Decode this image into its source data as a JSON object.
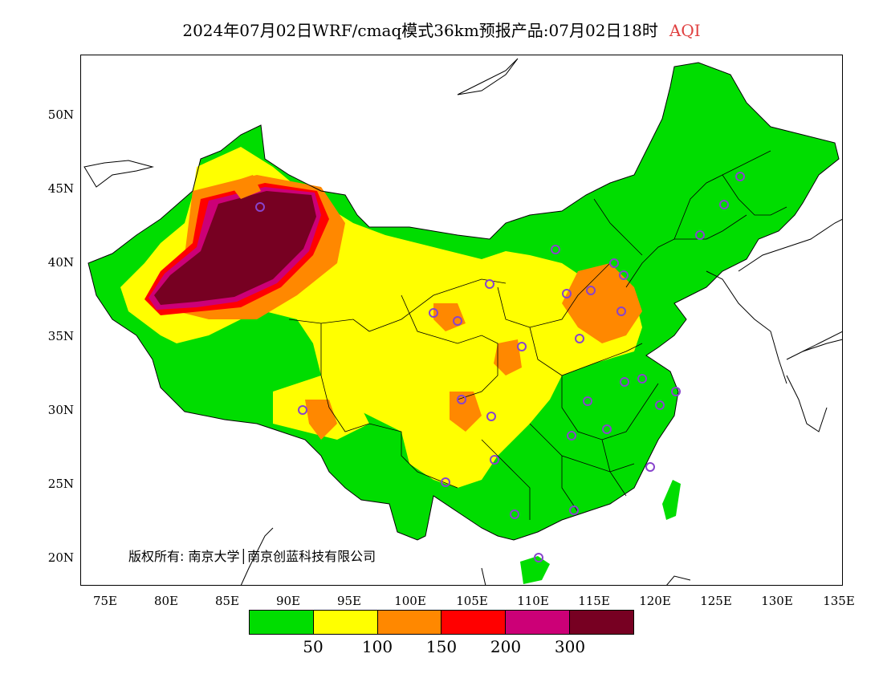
{
  "title": {
    "main": "2024年07月02日WRF/cmaq模式36km预报产品:07月02日18时",
    "variable": "AQI"
  },
  "axes": {
    "y_ticks": [
      "50N",
      "45N",
      "40N",
      "35N",
      "30N",
      "25N",
      "20N"
    ],
    "x_ticks": [
      "75E",
      "80E",
      "85E",
      "90E",
      "95E",
      "100E",
      "105E",
      "110E",
      "115E",
      "120E",
      "125E",
      "130E",
      "135E"
    ]
  },
  "legend": {
    "labels": [
      "50",
      "100",
      "150",
      "200",
      "300"
    ],
    "colors": [
      "#00dd00",
      "#ffff00",
      "#ff8800",
      "#ff0000",
      "#cc0077",
      "#770022"
    ]
  },
  "copyright": "版权所有: 南京大学│南京创蓝科技有限公司",
  "colors": {
    "good": "#00dd00",
    "moderate": "#ffff00",
    "sensitive": "#ff8800",
    "unhealthy": "#ff0000",
    "very_unhealthy": "#cc0077",
    "hazardous": "#770022",
    "station_marker": "#8844cc"
  }
}
